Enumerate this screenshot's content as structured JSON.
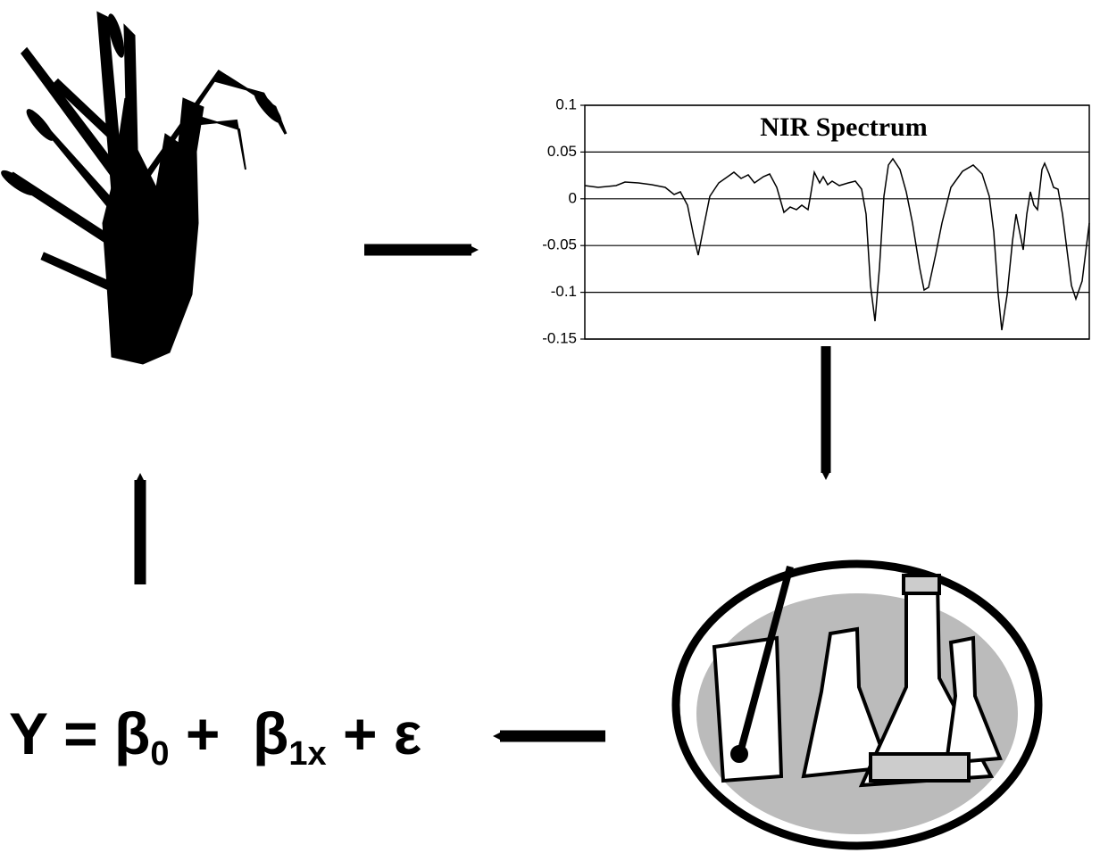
{
  "spectrum": {
    "title": "NIR Spectrum",
    "ylim": [
      -0.15,
      0.1
    ],
    "yticks": [
      0.1,
      0.05,
      0,
      -0.05,
      -0.1,
      -0.15
    ]
  },
  "formula": {
    "parts": [
      "Y = β",
      "0",
      " +  β",
      "1x",
      " + ε"
    ]
  }
}
